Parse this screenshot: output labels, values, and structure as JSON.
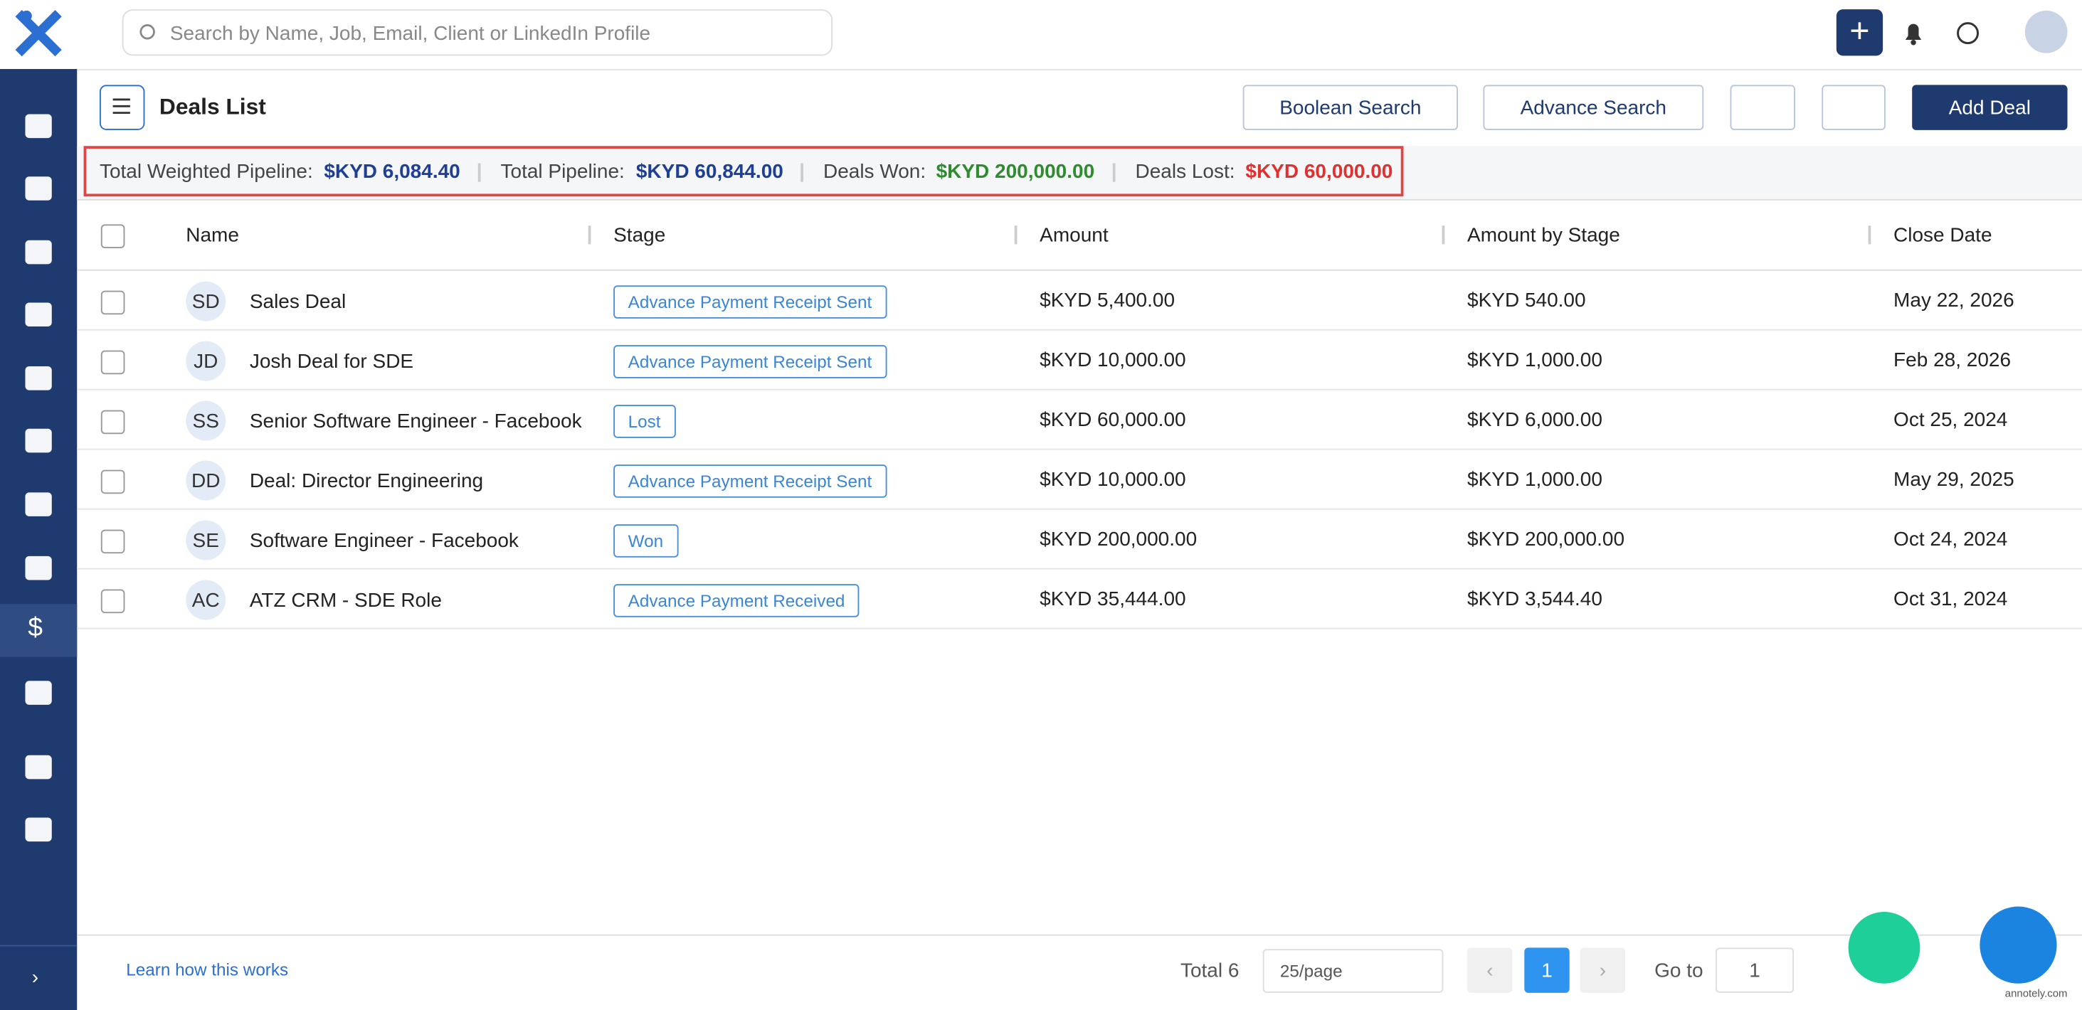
{
  "search": {
    "placeholder": "Search by Name, Job, Email, Client or LinkedIn Profile"
  },
  "header": {
    "title": "Deals List",
    "buttons": [
      "Boolean Search",
      "Advance Search"
    ],
    "add": "Add Deal"
  },
  "summary": [
    {
      "label": "Total Weighted Pipeline:",
      "value": "$KYD 6,084.40"
    },
    {
      "label": "Total Pipeline:",
      "value": "$KYD 60,844.00"
    },
    {
      "label": "Deals Won:",
      "value": "$KYD 200,000.00"
    },
    {
      "label": "Deals Lost:",
      "value": "$KYD 60,000.00"
    }
  ],
  "table": {
    "columns": [
      "Name",
      "Stage",
      "Amount",
      "Amount by Stage",
      "Close Date"
    ],
    "rows": [
      [
        "SD",
        "Sales Deal",
        "Advance Payment Receipt Sent",
        "$KYD 5,400.00",
        "$KYD 540.00",
        "May 22, 2026"
      ],
      [
        "JD",
        "Josh Deal for SDE",
        "Advance Payment Receipt Sent",
        "$KYD 10,000.00",
        "$KYD 1,000.00",
        "Feb 28, 2026"
      ],
      [
        "SS",
        "Senior Software Engineer - Facebook",
        "Lost",
        "$KYD 60,000.00",
        "$KYD 6,000.00",
        "Oct 25, 2024"
      ],
      [
        "DD",
        "Deal: Director Engineering",
        "Advance Payment Receipt Sent",
        "$KYD 10,000.00",
        "$KYD 1,000.00",
        "May 29, 2025"
      ],
      [
        "SE",
        "Software Engineer - Facebook",
        "Won",
        "$KYD 200,000.00",
        "$KYD 200,000.00",
        "Oct 24, 2024"
      ],
      [
        "AC",
        "ATZ CRM - SDE Role",
        "Advance Payment Received",
        "$KYD 35,444.00",
        "$KYD 3,544.40",
        "Oct 31, 2024"
      ]
    ]
  },
  "footer": {
    "help": "Learn how this works",
    "total": "Total 6",
    "page_size": "25/page",
    "page": "1",
    "goto": "Go to",
    "goto_value": "1",
    "watermark": "annotely.com"
  }
}
